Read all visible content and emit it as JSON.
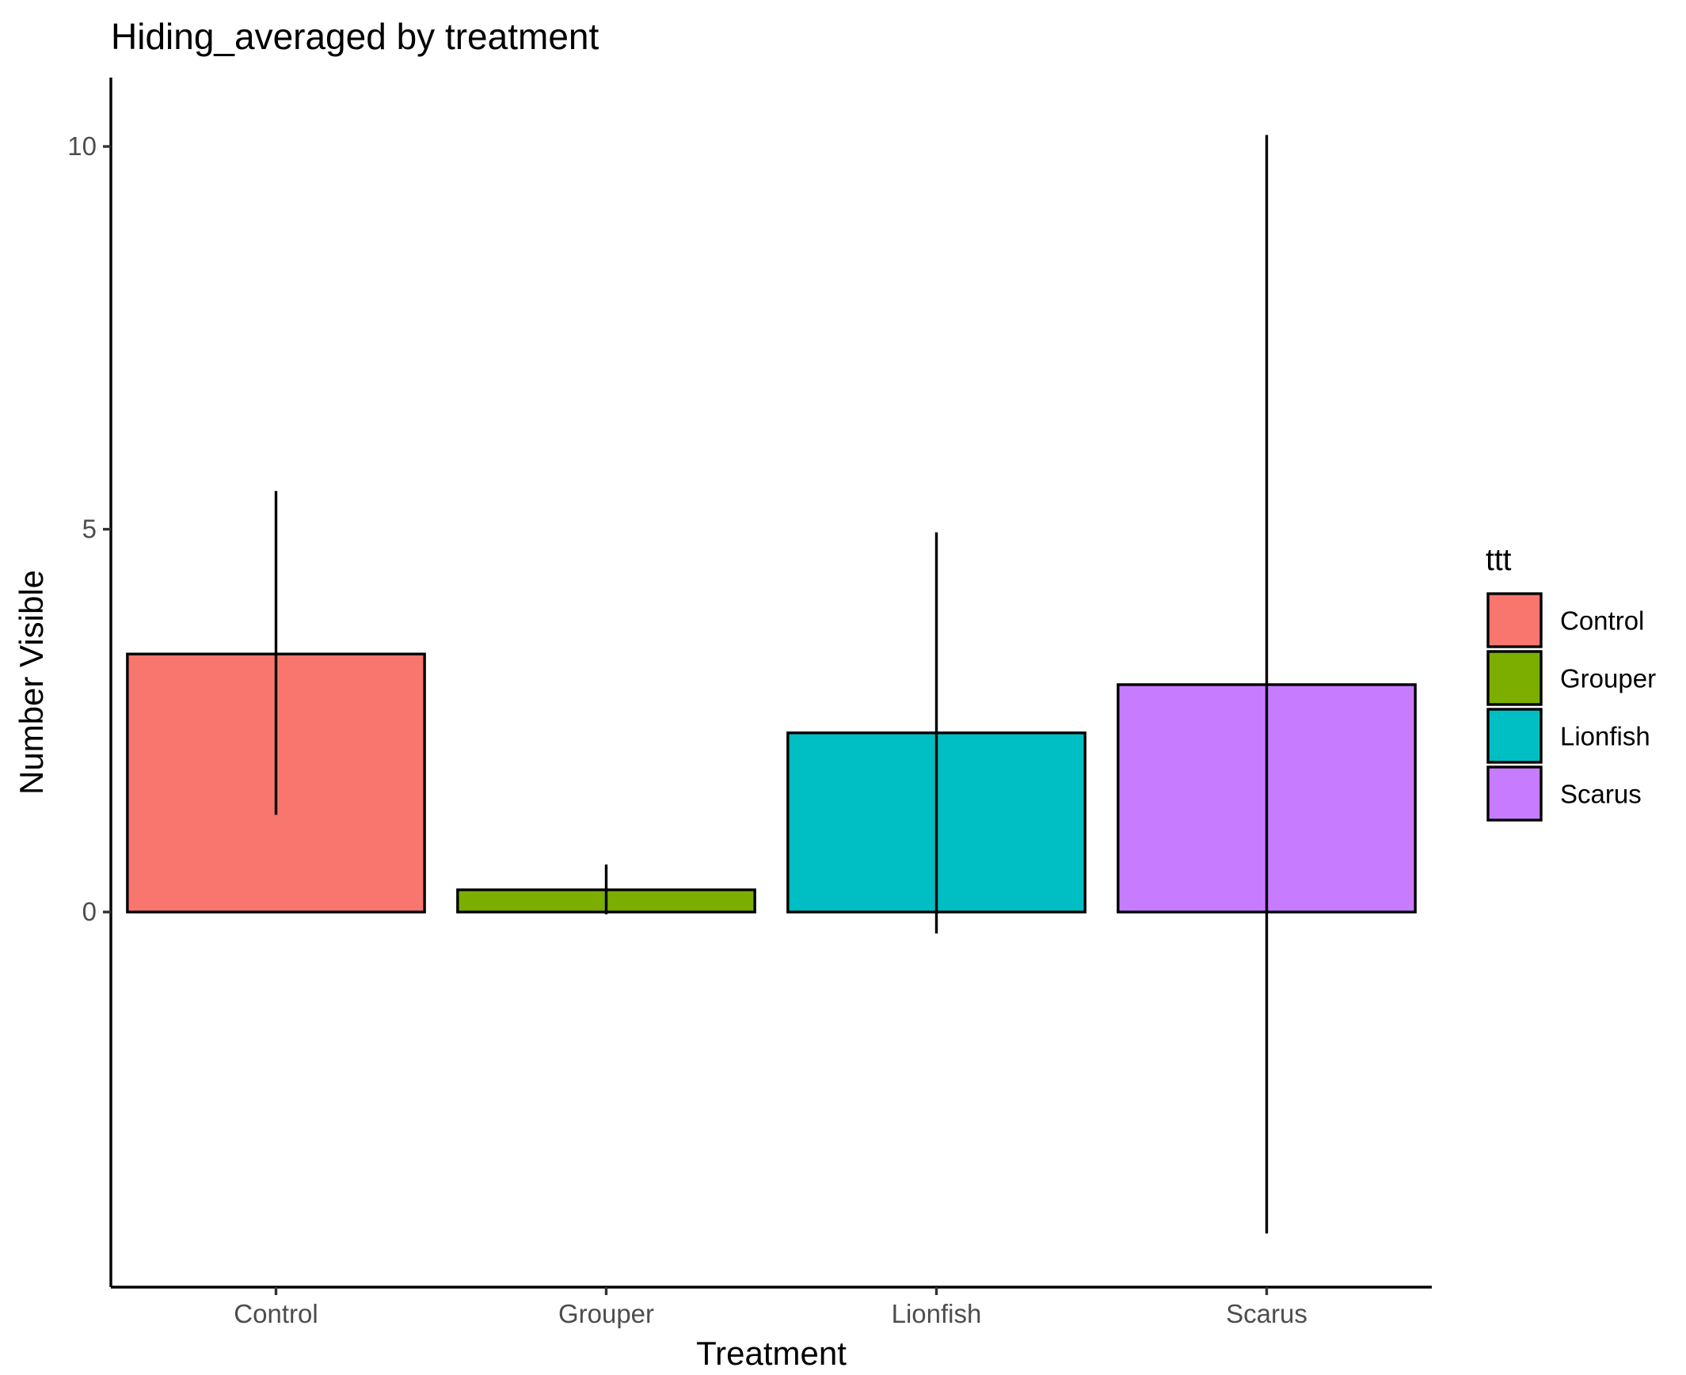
{
  "chart_data": {
    "type": "bar",
    "title": "Hiding_averaged by treatment",
    "xlabel": "Treatment",
    "ylabel": "Number Visible",
    "categories": [
      "Control",
      "Grouper",
      "Lionfish",
      "Scarus"
    ],
    "values": [
      3.37,
      0.29,
      2.34,
      2.97
    ],
    "error_bars": {
      "lower": [
        1.27,
        -0.03,
        -0.28,
        -4.2
      ],
      "upper": [
        5.5,
        0.62,
        4.96,
        10.15
      ]
    },
    "colors": [
      "#F8766D",
      "#7CAE00",
      "#00BFC4",
      "#C77CFF"
    ],
    "ylim": [
      -4.9,
      10.9
    ],
    "yticks": [
      0,
      5,
      10
    ],
    "ytick_labels": [
      "0",
      "5",
      "10"
    ],
    "grid": false,
    "legend": {
      "title": "ttt",
      "placement": "right",
      "entries": [
        "Control",
        "Grouper",
        "Lionfish",
        "Scarus"
      ]
    }
  }
}
